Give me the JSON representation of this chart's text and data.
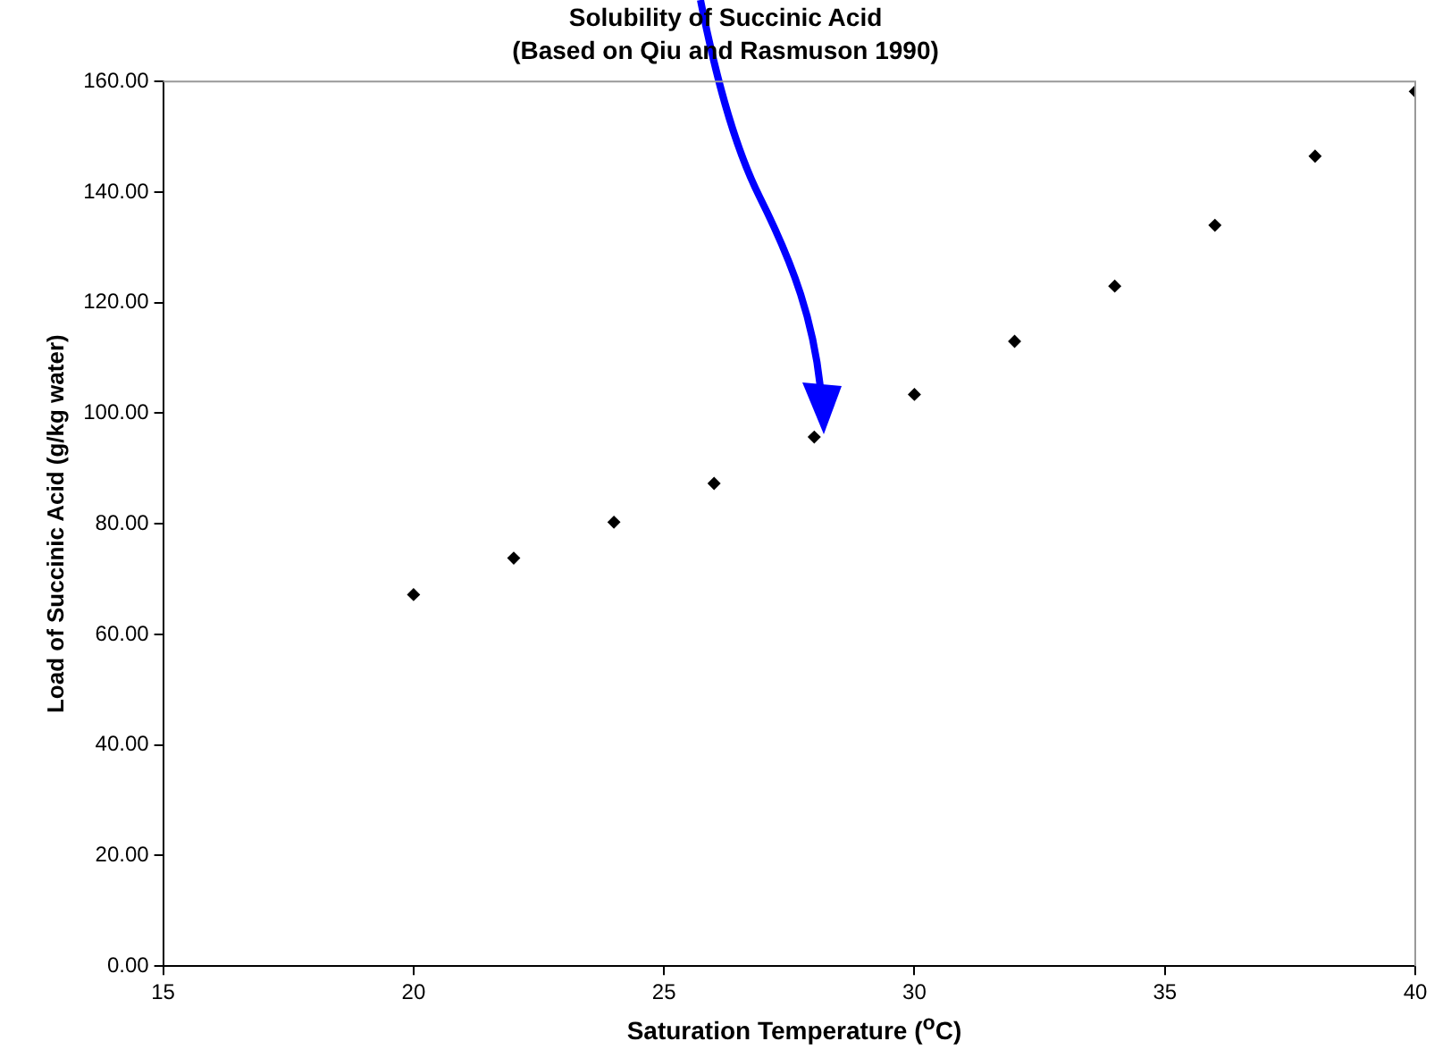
{
  "chart_data": {
    "type": "scatter",
    "title": "Solubility of Succinic Acid",
    "subtitle": "(Based on Qiu and Rasmuson 1990)",
    "xlabel": "Saturation Temperature ($^{o}$C)",
    "ylabel": "Load of Succinic Acid (g/kg water)",
    "series": [
      {
        "color": "#000000",
        "x": [
          20,
          22,
          24,
          26,
          28,
          30,
          32,
          34,
          36,
          38,
          40
        ],
        "values": [
          67.2,
          73.8,
          80.3,
          87.3,
          95.7,
          103.4,
          113.0,
          123.0,
          134.0,
          146.5,
          158.2
        ]
      }
    ],
    "xlim": [
      15,
      40
    ],
    "xticks": [
      15,
      20,
      25,
      30,
      35,
      40
    ],
    "ylim": [
      0,
      160
    ],
    "yticks": [
      {
        "value": 0,
        "label": "0.00"
      },
      {
        "value": 20,
        "label": "20.00"
      },
      {
        "value": 40,
        "label": "40.00"
      },
      {
        "value": 60,
        "label": "60.00"
      },
      {
        "value": 80,
        "label": "80.00"
      },
      {
        "value": 100,
        "label": "100.00"
      },
      {
        "value": 120,
        "label": "120.00"
      },
      {
        "value": 140,
        "label": "140.00"
      },
      {
        "value": 160,
        "label": "160.00"
      }
    ],
    "grid": false,
    "legend": false,
    "marker": "diamond"
  }
}
